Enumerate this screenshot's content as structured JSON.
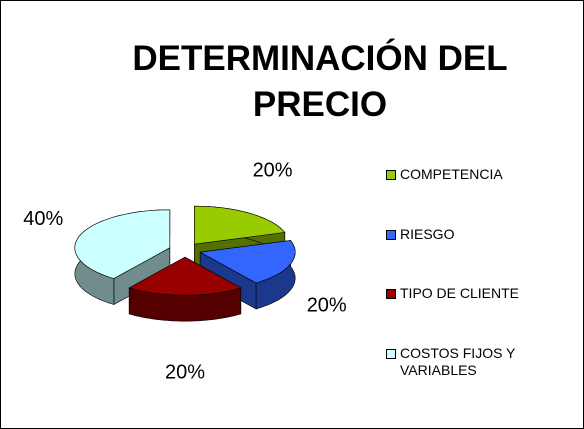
{
  "chart_data": {
    "type": "pie",
    "title": "DETERMINACIÓN DEL PRECIO",
    "categories": [
      "COMPETENCIA",
      "RIESGO",
      "TIPO DE CLIENTE",
      "COSTOS FIJOS Y VARIABLES"
    ],
    "values": [
      20,
      20,
      20,
      40
    ],
    "value_labels": [
      "20%",
      "20%",
      "20%",
      "40%"
    ],
    "colors": [
      "#99cc00",
      "#3366ff",
      "#990000",
      "#ccffff"
    ],
    "legend": "right"
  }
}
